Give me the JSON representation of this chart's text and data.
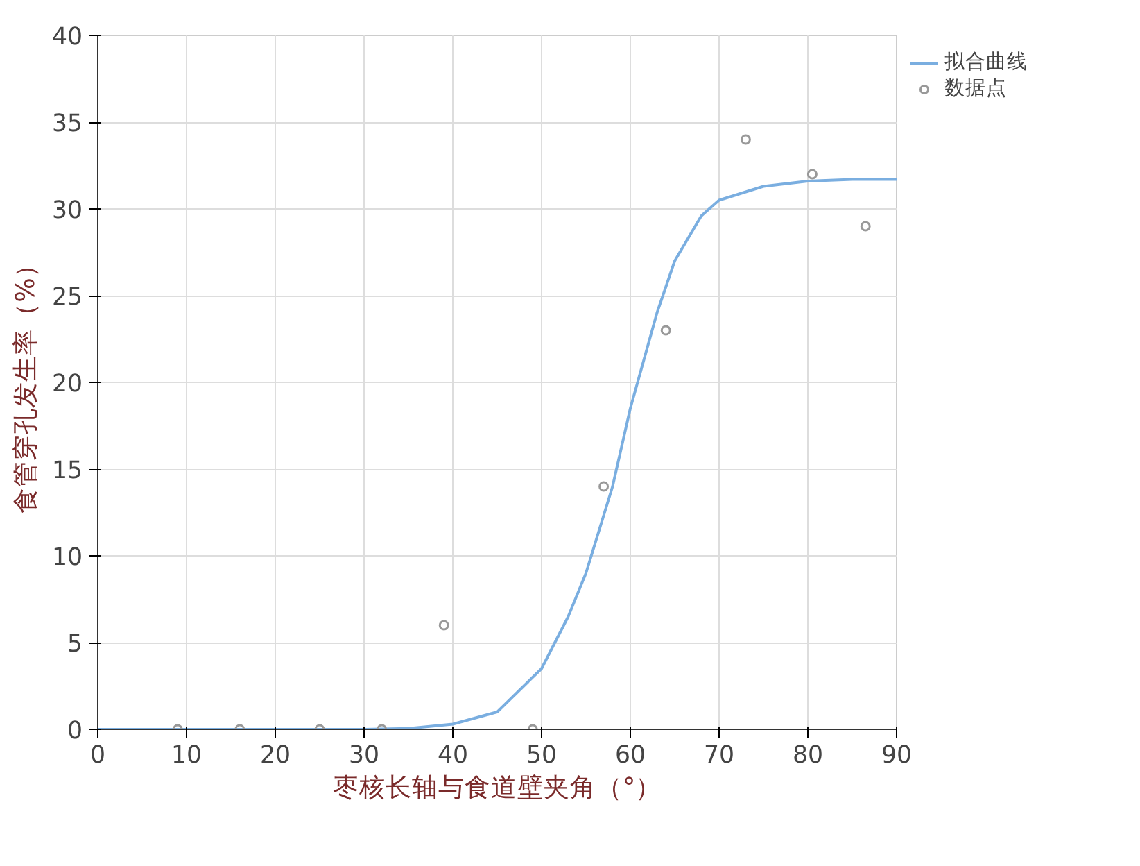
{
  "chart_data": {
    "type": "line",
    "xlabel": "枣核长轴与食道壁夹角（°）",
    "ylabel": "食管穿孔发生率（%）",
    "xlim": [
      0,
      90
    ],
    "xticks": [
      0,
      10,
      20,
      30,
      40,
      50,
      60,
      70,
      80,
      90
    ],
    "ylim": [
      0,
      40
    ],
    "yticks": [
      0,
      5,
      10,
      15,
      20,
      25,
      30,
      35,
      40
    ],
    "grid": true,
    "legend": "top right",
    "series": [
      {
        "name": "拟合曲线",
        "color": "#7aaee0",
        "line_style": "solid",
        "x": [
          0,
          10,
          20,
          30,
          35,
          40,
          45,
          50,
          53,
          55,
          58,
          60,
          63,
          65,
          68,
          70,
          75,
          80,
          85,
          90
        ],
        "values": [
          0,
          0,
          0,
          0,
          0.05,
          0.3,
          1,
          3.5,
          6.5,
          9,
          14,
          18.5,
          24,
          27,
          29.6,
          30.5,
          31.3,
          31.6,
          31.7,
          31.7
        ]
      },
      {
        "name": "数据点",
        "type": "scatter",
        "color": "#999999",
        "marker": "circle",
        "x": [
          9,
          16,
          25,
          32,
          39,
          49,
          57,
          64,
          73,
          80.5,
          86.5
        ],
        "values": [
          0,
          0,
          0,
          0,
          6,
          0,
          14,
          23,
          34,
          32,
          29
        ]
      }
    ]
  }
}
